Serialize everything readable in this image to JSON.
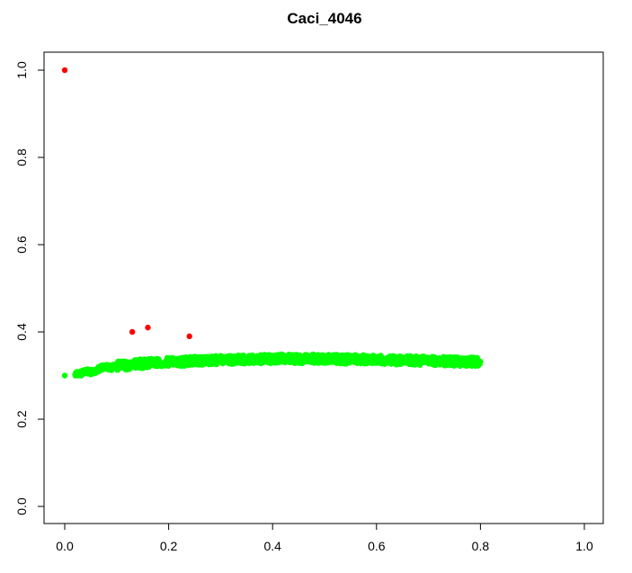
{
  "chart_data": {
    "type": "scatter",
    "title": "Caci_4046",
    "xlabel": "",
    "ylabel": "",
    "xlim": [
      0,
      1
    ],
    "ylim": [
      0,
      1
    ],
    "x_ticks": [
      "0.0",
      "0.2",
      "0.4",
      "0.6",
      "0.8",
      "1.0"
    ],
    "y_ticks": [
      "0.0",
      "0.2",
      "0.4",
      "0.6",
      "0.8",
      "1.0"
    ],
    "grid": false,
    "series": [
      {
        "color": "#00ff00",
        "x_range": [
          0.0,
          0.8
        ],
        "points": [
          [
            0.0,
            0.3
          ],
          [
            0.02,
            0.302
          ],
          [
            0.03,
            0.305
          ],
          [
            0.04,
            0.31
          ],
          [
            0.05,
            0.308
          ],
          [
            0.06,
            0.312
          ],
          [
            0.07,
            0.318
          ],
          [
            0.08,
            0.32
          ],
          [
            0.09,
            0.318
          ],
          [
            0.1,
            0.322
          ],
          [
            0.11,
            0.325
          ],
          [
            0.12,
            0.323
          ],
          [
            0.13,
            0.326
          ],
          [
            0.14,
            0.328
          ],
          [
            0.15,
            0.327
          ],
          [
            0.16,
            0.329
          ],
          [
            0.18,
            0.33
          ],
          [
            0.2,
            0.332
          ],
          [
            0.22,
            0.331
          ],
          [
            0.24,
            0.333
          ],
          [
            0.26,
            0.334
          ],
          [
            0.28,
            0.335
          ],
          [
            0.3,
            0.336
          ],
          [
            0.32,
            0.336
          ],
          [
            0.34,
            0.337
          ],
          [
            0.36,
            0.337
          ],
          [
            0.38,
            0.338
          ],
          [
            0.4,
            0.338
          ],
          [
            0.42,
            0.339
          ],
          [
            0.44,
            0.338
          ],
          [
            0.46,
            0.338
          ],
          [
            0.48,
            0.339
          ],
          [
            0.5,
            0.338
          ],
          [
            0.52,
            0.338
          ],
          [
            0.54,
            0.337
          ],
          [
            0.56,
            0.338
          ],
          [
            0.58,
            0.337
          ],
          [
            0.6,
            0.336
          ],
          [
            0.62,
            0.336
          ],
          [
            0.64,
            0.335
          ],
          [
            0.66,
            0.335
          ],
          [
            0.68,
            0.334
          ],
          [
            0.7,
            0.334
          ],
          [
            0.72,
            0.333
          ],
          [
            0.74,
            0.333
          ],
          [
            0.76,
            0.332
          ],
          [
            0.78,
            0.332
          ],
          [
            0.8,
            0.332
          ]
        ]
      },
      {
        "color": "#ff0000",
        "points": [
          [
            0.0,
            1.0
          ],
          [
            0.13,
            0.4
          ],
          [
            0.16,
            0.41
          ],
          [
            0.24,
            0.39
          ]
        ]
      }
    ]
  }
}
